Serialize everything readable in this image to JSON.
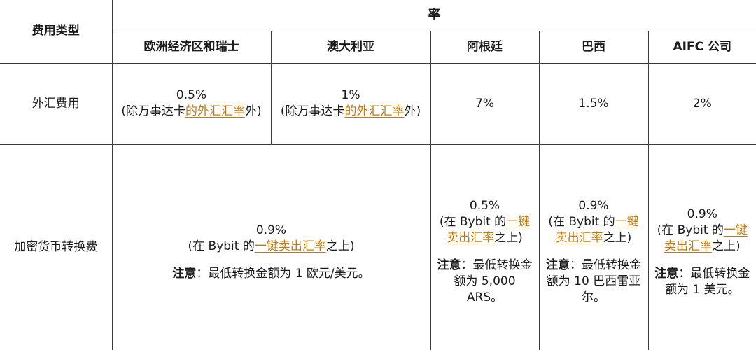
{
  "header": {
    "fee_type": "费用类型",
    "rate": "率",
    "regions": [
      "欧洲经济区和瑞士",
      "澳大利亚",
      "阿根廷",
      "巴西",
      "AIFC 公司"
    ]
  },
  "fx_row": {
    "label": "外汇费用",
    "eea": {
      "value": "0.5%",
      "pre": "(除万事达卡",
      "link": "的外汇汇率",
      "post": "外)"
    },
    "au": {
      "value": "1%",
      "pre": "(除万事达卡",
      "link": "的外汇汇率",
      "post": "外)"
    },
    "ar": "7%",
    "br": "1.5%",
    "aifc": "2%"
  },
  "crypto_row": {
    "label": "加密货币转换费",
    "eea_au": {
      "value": "0.9%",
      "pre": "(在 Bybit 的",
      "link": "一键卖出汇率",
      "post": "之上)",
      "note_label": "注意",
      "note_text": "：最低转换金额为 1 欧元/美元。"
    },
    "ar": {
      "value": "0.5%",
      "pre": "(在 Bybit 的",
      "link": "一键卖出汇率",
      "post": "之上)",
      "note_label": "注意",
      "note_text": "：最低转换金额为 5,000 ARS。"
    },
    "br": {
      "value": "0.9%",
      "pre": "(在 Bybit 的",
      "link": "一键卖出汇率",
      "post": "之上)",
      "note_label": "注意",
      "note_text": "：最低转换金额为 10 巴西雷亚尔。"
    },
    "aifc": {
      "value": "0.9%",
      "pre": "(在 Bybit 的",
      "link": "一键卖出汇率",
      "post": "之上)",
      "note_label": "注意",
      "note_text": "：最低转换金额为 1 美元。"
    }
  }
}
